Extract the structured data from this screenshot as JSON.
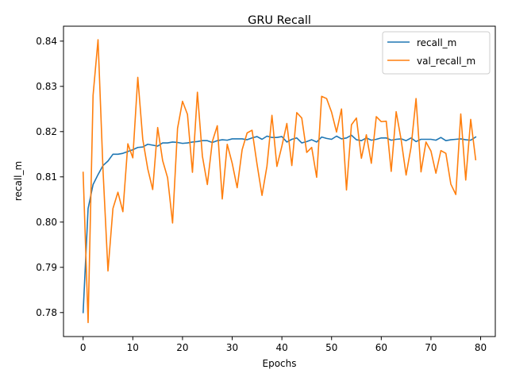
{
  "chart_data": {
    "type": "line",
    "title": "GRU Recall",
    "xlabel": "Epochs",
    "ylabel": "recall_m",
    "xlim": [
      -3.95,
      82.95
    ],
    "ylim": [
      0.7747,
      0.8433
    ],
    "xticks": [
      0,
      10,
      20,
      30,
      40,
      50,
      60,
      70,
      80
    ],
    "yticks": [
      0.78,
      0.79,
      0.8,
      0.81,
      0.82,
      0.83,
      0.84
    ],
    "ytick_labels": [
      "0.78",
      "0.79",
      "0.80",
      "0.81",
      "0.82",
      "0.83",
      "0.84"
    ],
    "grid": false,
    "legend_position": "top-right",
    "series": [
      {
        "name": "recall_m",
        "color": "#1f77b4",
        "values": [
          0.78,
          0.803,
          0.8083,
          0.8105,
          0.8125,
          0.8135,
          0.815,
          0.815,
          0.8152,
          0.8156,
          0.816,
          0.8165,
          0.8166,
          0.8172,
          0.817,
          0.8168,
          0.8175,
          0.8175,
          0.8177,
          0.8176,
          0.8174,
          0.8175,
          0.8177,
          0.8178,
          0.818,
          0.818,
          0.8176,
          0.818,
          0.8182,
          0.8181,
          0.8184,
          0.8184,
          0.8184,
          0.8182,
          0.8186,
          0.8189,
          0.8183,
          0.819,
          0.8187,
          0.8187,
          0.8189,
          0.8177,
          0.8183,
          0.8186,
          0.8175,
          0.8178,
          0.8182,
          0.8177,
          0.8188,
          0.8185,
          0.8183,
          0.819,
          0.8184,
          0.8186,
          0.8192,
          0.8182,
          0.818,
          0.8186,
          0.8181,
          0.8183,
          0.8186,
          0.8186,
          0.8181,
          0.8183,
          0.8184,
          0.818,
          0.8186,
          0.8178,
          0.8183,
          0.8183,
          0.8183,
          0.8181,
          0.8187,
          0.818,
          0.8182,
          0.8183,
          0.8184,
          0.8182,
          0.8181,
          0.8188
        ]
      },
      {
        "name": "val_recall_m",
        "color": "#ff7f0e",
        "values": [
          0.811,
          0.7778,
          0.828,
          0.8403,
          0.8115,
          0.7892,
          0.803,
          0.8066,
          0.8023,
          0.8173,
          0.8142,
          0.832,
          0.8183,
          0.8118,
          0.8072,
          0.8209,
          0.8136,
          0.8098,
          0.7998,
          0.8207,
          0.8267,
          0.8238,
          0.811,
          0.8287,
          0.8146,
          0.8083,
          0.8178,
          0.8213,
          0.8051,
          0.8172,
          0.813,
          0.8076,
          0.816,
          0.8197,
          0.8203,
          0.8128,
          0.8059,
          0.8124,
          0.8236,
          0.8123,
          0.8168,
          0.8218,
          0.8125,
          0.8242,
          0.823,
          0.8154,
          0.8165,
          0.8099,
          0.8278,
          0.8273,
          0.8243,
          0.8199,
          0.825,
          0.8071,
          0.8215,
          0.823,
          0.8141,
          0.8193,
          0.813,
          0.8233,
          0.8222,
          0.8223,
          0.8112,
          0.8244,
          0.8182,
          0.8104,
          0.8166,
          0.8273,
          0.8111,
          0.8177,
          0.8157,
          0.8108,
          0.8158,
          0.8152,
          0.8084,
          0.8061,
          0.8239,
          0.8093,
          0.8227,
          0.8138
        ]
      }
    ]
  }
}
